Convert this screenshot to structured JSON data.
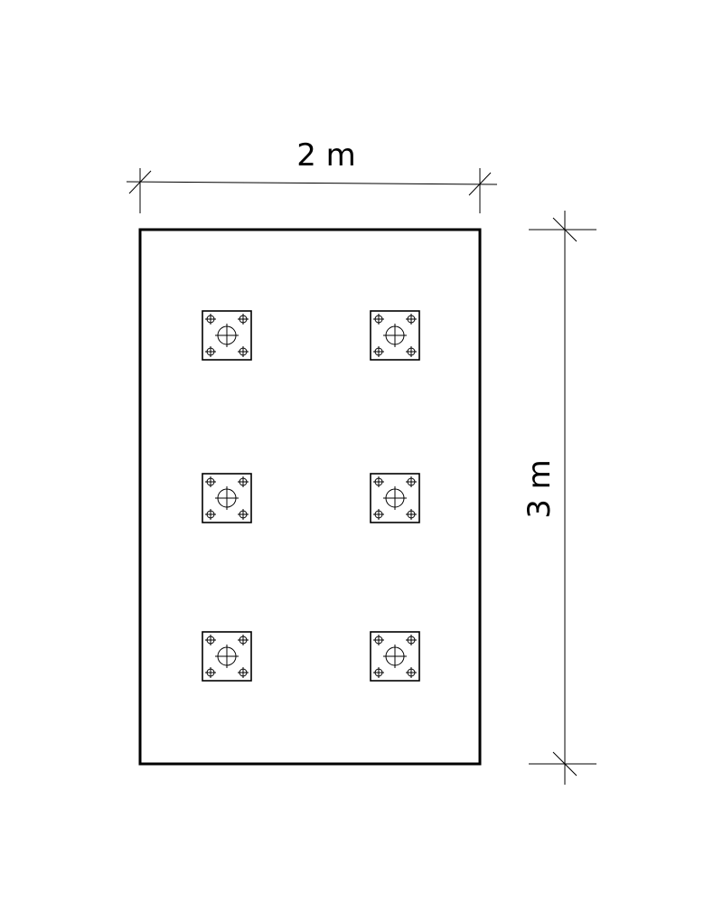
{
  "dimensions": {
    "width_label": "2 m",
    "height_label": "3 m"
  },
  "base_plates": [
    {
      "row": 1,
      "col": 1
    },
    {
      "row": 1,
      "col": 2
    },
    {
      "row": 2,
      "col": 1
    },
    {
      "row": 2,
      "col": 2
    },
    {
      "row": 3,
      "col": 1
    },
    {
      "row": 3,
      "col": 2
    }
  ],
  "colors": {
    "line": "#000000",
    "background": "#ffffff"
  }
}
